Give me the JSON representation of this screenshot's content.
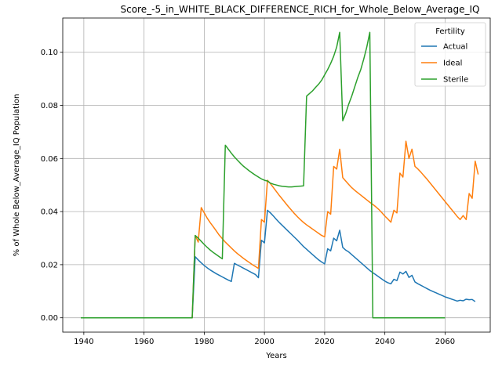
{
  "chart_data": {
    "type": "line",
    "title": "Score_-5_in_WHITE_BLACK_DIFFERENCE_RICH_for_Whole_Below_Average_IQ",
    "xlabel": "Years",
    "ylabel": "% of Whole Below_Average_IQ Population",
    "xlim": [
      1933,
      2075
    ],
    "ylim": [
      -0.0054,
      0.1129
    ],
    "xticks": [
      1940,
      1960,
      1980,
      2000,
      2020,
      2040,
      2060
    ],
    "xtick_labels": [
      "1940",
      "1960",
      "1980",
      "2000",
      "2020",
      "2040",
      "2060"
    ],
    "yticks": [
      0.0,
      0.02,
      0.04,
      0.06,
      0.08,
      0.1
    ],
    "ytick_labels": [
      "0.00",
      "0.02",
      "0.04",
      "0.06",
      "0.08",
      "0.10"
    ],
    "grid": true,
    "legend": {
      "title": "Fertility",
      "placement": "top-right"
    },
    "series": [
      {
        "name": "Actual",
        "color": "#1f77b4",
        "points": [
          [
            1939,
            0
          ],
          [
            1976,
            0
          ],
          [
            1977,
            0.023
          ],
          [
            1978,
            0.0218
          ],
          [
            1979,
            0.0207
          ],
          [
            1980,
            0.0197
          ],
          [
            1981,
            0.0188
          ],
          [
            1982,
            0.018
          ],
          [
            1983,
            0.0173
          ],
          [
            1984,
            0.0166
          ],
          [
            1985,
            0.016
          ],
          [
            1986,
            0.0154
          ],
          [
            1987,
            0.0148
          ],
          [
            1988,
            0.0142
          ],
          [
            1989,
            0.0137
          ],
          [
            1990,
            0.0205
          ],
          [
            1991,
            0.0199
          ],
          [
            1992,
            0.0193
          ],
          [
            1993,
            0.0187
          ],
          [
            1994,
            0.0181
          ],
          [
            1995,
            0.0175
          ],
          [
            1996,
            0.0169
          ],
          [
            1997,
            0.0163
          ],
          [
            1998,
            0.0151
          ],
          [
            1999,
            0.0292
          ],
          [
            2000,
            0.0282
          ],
          [
            2001,
            0.0405
          ],
          [
            2002,
            0.0395
          ],
          [
            2003,
            0.0383
          ],
          [
            2004,
            0.037
          ],
          [
            2005,
            0.0358
          ],
          [
            2006,
            0.0347
          ],
          [
            2007,
            0.0336
          ],
          [
            2008,
            0.0325
          ],
          [
            2009,
            0.0314
          ],
          [
            2010,
            0.0303
          ],
          [
            2011,
            0.0292
          ],
          [
            2012,
            0.028
          ],
          [
            2013,
            0.0268
          ],
          [
            2014,
            0.0258
          ],
          [
            2015,
            0.0248
          ],
          [
            2016,
            0.0238
          ],
          [
            2017,
            0.0228
          ],
          [
            2018,
            0.0218
          ],
          [
            2019,
            0.021
          ],
          [
            2020,
            0.0203
          ],
          [
            2021,
            0.026
          ],
          [
            2022,
            0.0252
          ],
          [
            2023,
            0.03
          ],
          [
            2024,
            0.029
          ],
          [
            2025,
            0.033
          ],
          [
            2026,
            0.0265
          ],
          [
            2027,
            0.0255
          ],
          [
            2028,
            0.0248
          ],
          [
            2029,
            0.0238
          ],
          [
            2030,
            0.0228
          ],
          [
            2031,
            0.0218
          ],
          [
            2032,
            0.0208
          ],
          [
            2033,
            0.0198
          ],
          [
            2034,
            0.0188
          ],
          [
            2035,
            0.0178
          ],
          [
            2036,
            0.017
          ],
          [
            2037,
            0.0162
          ],
          [
            2038,
            0.0154
          ],
          [
            2039,
            0.0146
          ],
          [
            2040,
            0.0138
          ],
          [
            2041,
            0.0132
          ],
          [
            2042,
            0.0128
          ],
          [
            2043,
            0.0145
          ],
          [
            2044,
            0.014
          ],
          [
            2045,
            0.0172
          ],
          [
            2046,
            0.0165
          ],
          [
            2047,
            0.0175
          ],
          [
            2048,
            0.0152
          ],
          [
            2049,
            0.016
          ],
          [
            2050,
            0.0135
          ],
          [
            2051,
            0.0128
          ],
          [
            2052,
            0.0122
          ],
          [
            2053,
            0.0116
          ],
          [
            2054,
            0.011
          ],
          [
            2055,
            0.0104
          ],
          [
            2056,
            0.0099
          ],
          [
            2057,
            0.0094
          ],
          [
            2058,
            0.0089
          ],
          [
            2059,
            0.0084
          ],
          [
            2060,
            0.0079
          ],
          [
            2061,
            0.0075
          ],
          [
            2062,
            0.0071
          ],
          [
            2063,
            0.0067
          ],
          [
            2064,
            0.0063
          ],
          [
            2065,
            0.0066
          ],
          [
            2066,
            0.0064
          ],
          [
            2067,
            0.007
          ],
          [
            2068,
            0.0068
          ],
          [
            2069,
            0.0069
          ],
          [
            2070,
            0.0061
          ]
        ]
      },
      {
        "name": "Ideal",
        "color": "#ff7f0e",
        "points": [
          [
            1939,
            0
          ],
          [
            1976,
            0
          ],
          [
            1977,
            0.031
          ],
          [
            1978,
            0.0285
          ],
          [
            1979,
            0.0415
          ],
          [
            1980,
            0.0395
          ],
          [
            1981,
            0.0375
          ],
          [
            1982,
            0.0358
          ],
          [
            1983,
            0.0343
          ],
          [
            1984,
            0.0327
          ],
          [
            1985,
            0.0311
          ],
          [
            1986,
            0.0298
          ],
          [
            1987,
            0.0285
          ],
          [
            1988,
            0.0274
          ],
          [
            1989,
            0.0263
          ],
          [
            1990,
            0.0252
          ],
          [
            1991,
            0.0242
          ],
          [
            1992,
            0.0233
          ],
          [
            1993,
            0.0224
          ],
          [
            1994,
            0.0216
          ],
          [
            1995,
            0.0208
          ],
          [
            1996,
            0.02
          ],
          [
            1997,
            0.0193
          ],
          [
            1998,
            0.0186
          ],
          [
            1999,
            0.037
          ],
          [
            2000,
            0.036
          ],
          [
            2001,
            0.0518
          ],
          [
            2002,
            0.0505
          ],
          [
            2003,
            0.049
          ],
          [
            2004,
            0.0475
          ],
          [
            2005,
            0.046
          ],
          [
            2006,
            0.0446
          ],
          [
            2007,
            0.0432
          ],
          [
            2008,
            0.0418
          ],
          [
            2009,
            0.0405
          ],
          [
            2010,
            0.0392
          ],
          [
            2011,
            0.038
          ],
          [
            2012,
            0.0369
          ],
          [
            2013,
            0.0359
          ],
          [
            2014,
            0.035
          ],
          [
            2015,
            0.0342
          ],
          [
            2016,
            0.0334
          ],
          [
            2017,
            0.0326
          ],
          [
            2018,
            0.0318
          ],
          [
            2019,
            0.031
          ],
          [
            2020,
            0.0305
          ],
          [
            2021,
            0.04
          ],
          [
            2022,
            0.039
          ],
          [
            2023,
            0.057
          ],
          [
            2024,
            0.056
          ],
          [
            2025,
            0.0635
          ],
          [
            2026,
            0.0528
          ],
          [
            2027,
            0.0515
          ],
          [
            2028,
            0.0502
          ],
          [
            2029,
            0.049
          ],
          [
            2030,
            0.048
          ],
          [
            2031,
            0.0471
          ],
          [
            2032,
            0.0462
          ],
          [
            2033,
            0.0453
          ],
          [
            2034,
            0.0444
          ],
          [
            2035,
            0.0435
          ],
          [
            2036,
            0.0427
          ],
          [
            2037,
            0.0418
          ],
          [
            2038,
            0.0408
          ],
          [
            2039,
            0.0396
          ],
          [
            2040,
            0.0383
          ],
          [
            2041,
            0.0372
          ],
          [
            2042,
            0.036
          ],
          [
            2043,
            0.0405
          ],
          [
            2044,
            0.0395
          ],
          [
            2045,
            0.0545
          ],
          [
            2046,
            0.053
          ],
          [
            2047,
            0.0665
          ],
          [
            2048,
            0.06
          ],
          [
            2049,
            0.0635
          ],
          [
            2050,
            0.057
          ],
          [
            2051,
            0.056
          ],
          [
            2052,
            0.0548
          ],
          [
            2053,
            0.0535
          ],
          [
            2054,
            0.0522
          ],
          [
            2055,
            0.0508
          ],
          [
            2056,
            0.0494
          ],
          [
            2057,
            0.048
          ],
          [
            2058,
            0.0466
          ],
          [
            2059,
            0.0452
          ],
          [
            2060,
            0.0438
          ],
          [
            2061,
            0.0424
          ],
          [
            2062,
            0.041
          ],
          [
            2063,
            0.0396
          ],
          [
            2064,
            0.0382
          ],
          [
            2065,
            0.037
          ],
          [
            2066,
            0.0385
          ],
          [
            2067,
            0.037
          ],
          [
            2068,
            0.0468
          ],
          [
            2069,
            0.045
          ],
          [
            2070,
            0.059
          ],
          [
            2071,
            0.054
          ]
        ]
      },
      {
        "name": "Sterile",
        "color": "#2ca02c",
        "points": [
          [
            1939,
            0
          ],
          [
            1976,
            0
          ],
          [
            1977,
            0.031
          ],
          [
            1978,
            0.03
          ],
          [
            1979,
            0.0288
          ],
          [
            1980,
            0.0276
          ],
          [
            1981,
            0.0265
          ],
          [
            1982,
            0.0255
          ],
          [
            1983,
            0.0246
          ],
          [
            1984,
            0.0238
          ],
          [
            1985,
            0.023
          ],
          [
            1986,
            0.0222
          ],
          [
            1987,
            0.065
          ],
          [
            1988,
            0.0635
          ],
          [
            1989,
            0.062
          ],
          [
            1990,
            0.0606
          ],
          [
            1991,
            0.0594
          ],
          [
            1992,
            0.0582
          ],
          [
            1993,
            0.0571
          ],
          [
            1994,
            0.0562
          ],
          [
            1995,
            0.0553
          ],
          [
            1996,
            0.0545
          ],
          [
            1997,
            0.0537
          ],
          [
            1998,
            0.053
          ],
          [
            1999,
            0.0523
          ],
          [
            2000,
            0.0518
          ],
          [
            2001,
            0.0515
          ],
          [
            2002,
            0.0507
          ],
          [
            2003,
            0.0503
          ],
          [
            2004,
            0.05
          ],
          [
            2005,
            0.0497
          ],
          [
            2006,
            0.0495
          ],
          [
            2007,
            0.0494
          ],
          [
            2008,
            0.0493
          ],
          [
            2009,
            0.0493
          ],
          [
            2010,
            0.0494
          ],
          [
            2011,
            0.0495
          ],
          [
            2012,
            0.0496
          ],
          [
            2013,
            0.0497
          ],
          [
            2014,
            0.0835
          ],
          [
            2015,
            0.0845
          ],
          [
            2016,
            0.0855
          ],
          [
            2017,
            0.0868
          ],
          [
            2018,
            0.088
          ],
          [
            2019,
            0.0895
          ],
          [
            2020,
            0.0915
          ],
          [
            2021,
            0.0935
          ],
          [
            2022,
            0.0958
          ],
          [
            2023,
            0.0985
          ],
          [
            2024,
            0.102
          ],
          [
            2025,
            0.1075
          ],
          [
            2026,
            0.0742
          ],
          [
            2027,
            0.077
          ],
          [
            2028,
            0.0805
          ],
          [
            2029,
            0.0835
          ],
          [
            2030,
            0.087
          ],
          [
            2031,
            0.0905
          ],
          [
            2032,
            0.0935
          ],
          [
            2033,
            0.0975
          ],
          [
            2034,
            0.102
          ],
          [
            2035,
            0.1075
          ],
          [
            2036,
            0.0
          ],
          [
            2060,
            0.0
          ]
        ]
      }
    ]
  }
}
